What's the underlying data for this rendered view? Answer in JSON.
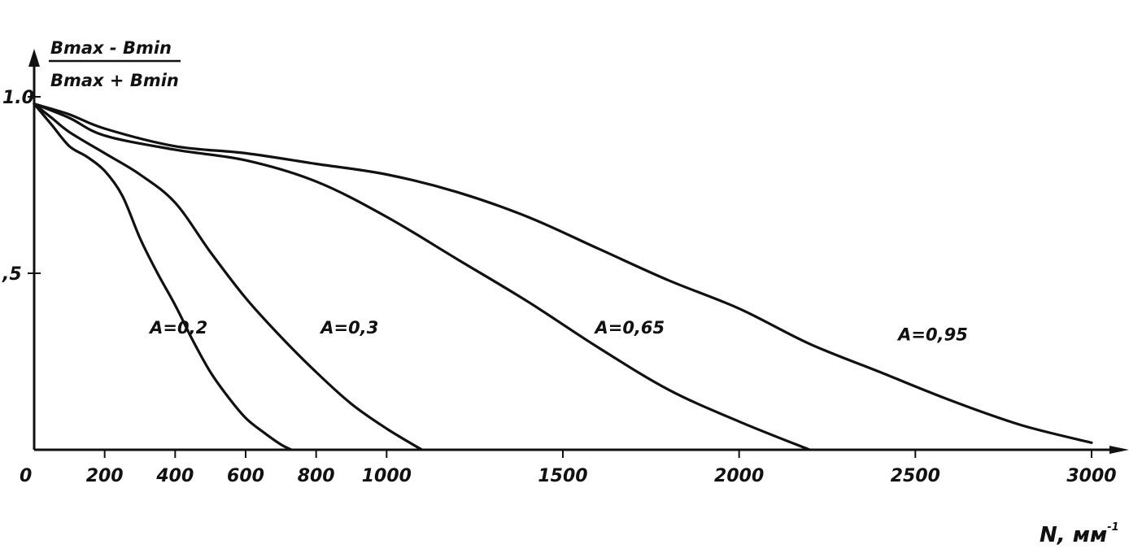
{
  "chart_data": {
    "type": "line",
    "title": "",
    "ylabel_numerator": "Bmax - Bmin",
    "ylabel_denominator": "Bmax + Bmin",
    "xlabel": "N, мм",
    "xlabel_superscript": "-1",
    "xlim": [
      0,
      3000
    ],
    "ylim": [
      0,
      1.0
    ],
    "xticks": [
      0,
      200,
      400,
      600,
      800,
      1000,
      1500,
      2000,
      2500,
      3000
    ],
    "xtick_labels": [
      "0",
      "200",
      "400",
      "600",
      "800",
      "1000",
      "1500",
      "2000",
      "2500",
      "3000"
    ],
    "yticks": [
      0.5,
      1.0
    ],
    "ytick_labels": [
      ",5",
      "1.0"
    ],
    "grid": false,
    "series": [
      {
        "name": "A=0,2",
        "x": [
          0,
          50,
          100,
          150,
          200,
          250,
          300,
          350,
          400,
          450,
          500,
          550,
          600,
          650,
          700,
          730
        ],
        "y": [
          0.98,
          0.92,
          0.86,
          0.83,
          0.79,
          0.72,
          0.6,
          0.5,
          0.41,
          0.31,
          0.22,
          0.15,
          0.09,
          0.05,
          0.015,
          0.0
        ]
      },
      {
        "name": "A=0,3",
        "x": [
          0,
          50,
          100,
          200,
          300,
          400,
          500,
          600,
          700,
          800,
          900,
          1000,
          1100
        ],
        "y": [
          0.98,
          0.94,
          0.9,
          0.84,
          0.78,
          0.7,
          0.56,
          0.43,
          0.32,
          0.22,
          0.13,
          0.06,
          0.0
        ]
      },
      {
        "name": "A=0,65",
        "x": [
          0,
          100,
          200,
          400,
          600,
          800,
          1000,
          1200,
          1400,
          1600,
          1800,
          2000,
          2200
        ],
        "y": [
          0.98,
          0.94,
          0.89,
          0.85,
          0.82,
          0.76,
          0.66,
          0.54,
          0.42,
          0.29,
          0.17,
          0.08,
          0.0
        ]
      },
      {
        "name": "A=0,95",
        "x": [
          0,
          100,
          200,
          400,
          600,
          800,
          1000,
          1200,
          1400,
          1600,
          1800,
          2000,
          2200,
          2400,
          2600,
          2800,
          3000
        ],
        "y": [
          0.98,
          0.95,
          0.91,
          0.86,
          0.84,
          0.81,
          0.78,
          0.73,
          0.66,
          0.57,
          0.48,
          0.4,
          0.3,
          0.22,
          0.14,
          0.07,
          0.02
        ]
      }
    ],
    "curve_labels": [
      "A=0,2",
      "A=0,3",
      "A=0,65",
      "A=0,95"
    ]
  }
}
